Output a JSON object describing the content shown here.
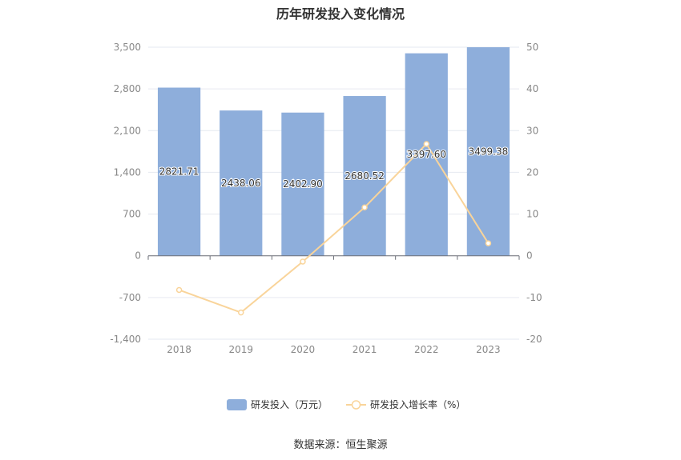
{
  "title": "历年研发投入变化情况",
  "source": "数据来源：恒生聚源",
  "colors": {
    "bar": "#8eaedb",
    "line": "#f9d49a",
    "axis_text": "#888888",
    "grid": "#e6e9f0",
    "label": "#333333"
  },
  "chart_data": {
    "type": "bar",
    "categories": [
      "2018",
      "2019",
      "2020",
      "2021",
      "2022",
      "2023"
    ],
    "series": [
      {
        "name": "研发投入（万元）",
        "type": "bar",
        "axis": "left",
        "values": [
          2821.71,
          2438.06,
          2402.9,
          2680.52,
          3397.6,
          3499.38
        ],
        "labels": [
          "2821.71",
          "2438.06",
          "2402.90",
          "2680.52",
          "3397.60",
          "3499.38"
        ]
      },
      {
        "name": "研发投入增长率（%）",
        "type": "line",
        "axis": "right",
        "values": [
          -8.2,
          -13.6,
          -1.4,
          11.6,
          26.8,
          3.0
        ]
      }
    ],
    "y_left": {
      "min": -1400,
      "max": 3500,
      "ticks": [
        -1400,
        -700,
        0,
        700,
        1400,
        2100,
        2800,
        3500
      ],
      "tick_labels": [
        "-1,400",
        "-700",
        "0",
        "700",
        "1,400",
        "2,100",
        "2,800",
        "3,500"
      ]
    },
    "y_right": {
      "min": -20,
      "max": 50,
      "ticks": [
        -20,
        -10,
        0,
        10,
        20,
        30,
        40,
        50
      ],
      "tick_labels": [
        "-20",
        "-10",
        "0",
        "10",
        "20",
        "30",
        "40",
        "50"
      ]
    },
    "grid": true,
    "legend_position": "bottom-center"
  }
}
